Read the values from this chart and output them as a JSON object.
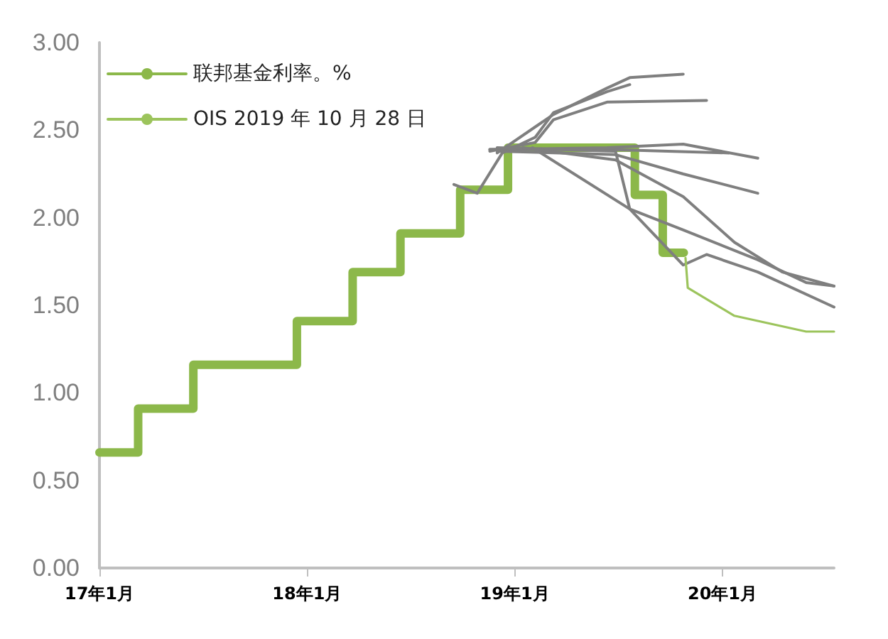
{
  "chart_data": {
    "type": "line",
    "xlim": [
      "2017-01-01",
      "2020-07-15"
    ],
    "xticks": [
      {
        "value": "2017-01-01",
        "label": "17年1月"
      },
      {
        "value": "2018-01-01",
        "label": "18年1月"
      },
      {
        "value": "2019-01-01",
        "label": "19年1月"
      },
      {
        "value": "2020-01-01",
        "label": "20年1月"
      }
    ],
    "ylim": [
      0,
      3
    ],
    "yticks": [
      {
        "value": 0,
        "label": "0.00"
      },
      {
        "value": 0.5,
        "label": "0.50"
      },
      {
        "value": 1,
        "label": "1.00"
      },
      {
        "value": 1.5,
        "label": "1.50"
      },
      {
        "value": 2,
        "label": "2.00"
      },
      {
        "value": 2.5,
        "label": "2.50"
      },
      {
        "value": 3,
        "label": "3.00"
      }
    ],
    "grid": false,
    "legend": "top left",
    "marker": "none",
    "line_style": "solid",
    "series": [
      {
        "name": "联邦基金利率。%",
        "type": "step",
        "color": "#8cb84a",
        "x": [
          "2017-01-01",
          "2017-03-10",
          "2017-06-15",
          "2017-12-14",
          "2018-03-22",
          "2018-06-14",
          "2018-09-27",
          "2018-12-20",
          "2019-07-31",
          "2019-09-18",
          "2019-10-25"
        ],
        "values": [
          0.66,
          0.91,
          1.16,
          1.41,
          1.69,
          1.91,
          2.16,
          2.4,
          2.13,
          1.8,
          1.8
        ]
      },
      {
        "name": "OIS 2019 年 10 月 28 日",
        "color": "#9cc45c",
        "x": [
          "2019-10-28",
          "2019-11-01",
          "2020-01-22",
          "2020-05-27",
          "2020-07-15"
        ],
        "values": [
          1.77,
          1.6,
          1.44,
          1.35,
          1.35
        ]
      },
      {
        "color": "#7f7f7f",
        "x": [
          "2018-12-01",
          "2019-03-10",
          "2019-06-12",
          "2019-07-22",
          "2019-10-24"
        ],
        "values": [
          2.37,
          2.59,
          2.74,
          2.8,
          2.82
        ]
      },
      {
        "color": "#7f7f7f",
        "x": [
          "2018-09-16",
          "2018-10-27",
          "2018-12-10",
          "2019-02-06",
          "2019-03-10",
          "2019-06-12",
          "2019-07-22"
        ],
        "values": [
          2.19,
          2.14,
          2.37,
          2.46,
          2.6,
          2.72,
          2.76
        ]
      },
      {
        "color": "#7f7f7f",
        "x": [
          "2018-11-18",
          "2019-02-06",
          "2019-03-10",
          "2019-06-12",
          "2019-12-04"
        ],
        "values": [
          2.38,
          2.43,
          2.56,
          2.66,
          2.67
        ]
      },
      {
        "color": "#7f7f7f",
        "x": [
          "2018-11-18",
          "2019-06-12",
          "2019-10-24",
          "2020-03-03"
        ],
        "values": [
          2.39,
          2.4,
          2.42,
          2.34
        ]
      },
      {
        "color": "#7f7f7f",
        "x": [
          "2018-11-18",
          "2019-06-12",
          "2020-01-12"
        ],
        "values": [
          2.39,
          2.39,
          2.37
        ]
      },
      {
        "color": "#7f7f7f",
        "x": [
          "2018-12-01",
          "2019-06-27",
          "2019-10-24",
          "2020-03-03"
        ],
        "values": [
          2.38,
          2.36,
          2.25,
          2.14
        ]
      },
      {
        "color": "#7f7f7f",
        "x": [
          "2018-12-01",
          "2019-06-27",
          "2019-07-22",
          "2019-10-24",
          "2019-12-04",
          "2020-03-03",
          "2020-07-15"
        ],
        "values": [
          2.4,
          2.38,
          2.05,
          1.73,
          1.79,
          1.69,
          1.49
        ]
      },
      {
        "color": "#7f7f7f",
        "x": [
          "2019-01-15",
          "2019-06-27",
          "2019-10-24",
          "2020-01-22",
          "2020-04-15",
          "2020-07-15"
        ],
        "values": [
          2.4,
          2.33,
          2.12,
          1.86,
          1.69,
          1.61
        ]
      },
      {
        "color": "#7f7f7f",
        "x": [
          "2019-02-01",
          "2019-07-22",
          "2019-10-24",
          "2020-03-03",
          "2020-05-27",
          "2020-07-15"
        ],
        "values": [
          2.4,
          2.05,
          1.93,
          1.76,
          1.63,
          1.61
        ]
      }
    ]
  }
}
